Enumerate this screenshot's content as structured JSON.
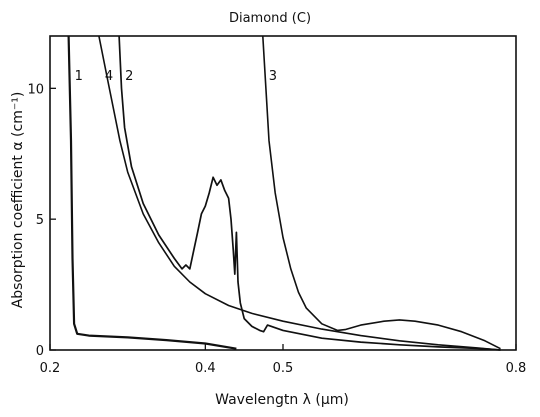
{
  "chart_data": {
    "type": "line",
    "title": "Diamond (C)",
    "xlabel": "Wavelengtn λ (µm)",
    "ylabel": "Absorption coefficient α (cm⁻¹)",
    "xlim": [
      0.2,
      0.8
    ],
    "ylim": [
      0,
      12
    ],
    "xticks": [
      {
        "value": 0.2,
        "label": "0.2"
      },
      {
        "value": 0.4,
        "label": "0.4"
      },
      {
        "value": 0.5,
        "label": "0.5"
      },
      {
        "value": 0.8,
        "label": "0.8"
      }
    ],
    "yticks": [
      {
        "value": 0,
        "label": "0"
      },
      {
        "value": 5,
        "label": "5"
      },
      {
        "value": 10,
        "label": "10"
      }
    ],
    "grid": false,
    "series": [
      {
        "name": "1",
        "points": [
          [
            0.224,
            12
          ],
          [
            0.227,
            8.0
          ],
          [
            0.229,
            3.5
          ],
          [
            0.231,
            1.0
          ],
          [
            0.235,
            0.62
          ],
          [
            0.25,
            0.55
          ],
          [
            0.3,
            0.48
          ],
          [
            0.35,
            0.38
          ],
          [
            0.4,
            0.25
          ],
          [
            0.44,
            0.05
          ]
        ]
      },
      {
        "name": "4",
        "points": [
          [
            0.263,
            12
          ],
          [
            0.275,
            10.2
          ],
          [
            0.29,
            8.0
          ],
          [
            0.3,
            6.8
          ],
          [
            0.32,
            5.2
          ],
          [
            0.34,
            4.1
          ],
          [
            0.36,
            3.2
          ],
          [
            0.38,
            2.6
          ],
          [
            0.4,
            2.15
          ],
          [
            0.43,
            1.7
          ],
          [
            0.46,
            1.4
          ],
          [
            0.5,
            1.1
          ],
          [
            0.55,
            0.8
          ],
          [
            0.6,
            0.55
          ],
          [
            0.65,
            0.35
          ],
          [
            0.7,
            0.2
          ],
          [
            0.75,
            0.08
          ],
          [
            0.78,
            0
          ]
        ]
      },
      {
        "name": "2",
        "points": [
          [
            0.289,
            12
          ],
          [
            0.292,
            10.0
          ],
          [
            0.296,
            8.5
          ],
          [
            0.305,
            7.0
          ],
          [
            0.32,
            5.6
          ],
          [
            0.34,
            4.4
          ],
          [
            0.36,
            3.5
          ],
          [
            0.37,
            3.1
          ],
          [
            0.375,
            3.25
          ],
          [
            0.38,
            3.1
          ],
          [
            0.385,
            3.8
          ],
          [
            0.39,
            4.5
          ],
          [
            0.395,
            5.2
          ],
          [
            0.4,
            5.5
          ],
          [
            0.405,
            6.0
          ],
          [
            0.41,
            6.6
          ],
          [
            0.415,
            6.3
          ],
          [
            0.42,
            6.5
          ],
          [
            0.425,
            6.1
          ],
          [
            0.43,
            5.8
          ],
          [
            0.433,
            5.0
          ],
          [
            0.436,
            3.8
          ],
          [
            0.438,
            2.9
          ],
          [
            0.44,
            4.5
          ],
          [
            0.442,
            2.6
          ],
          [
            0.445,
            1.8
          ],
          [
            0.45,
            1.2
          ],
          [
            0.46,
            0.9
          ],
          [
            0.47,
            0.75
          ],
          [
            0.475,
            0.7
          ],
          [
            0.48,
            0.95
          ],
          [
            0.5,
            0.75
          ],
          [
            0.55,
            0.45
          ],
          [
            0.6,
            0.3
          ],
          [
            0.65,
            0.2
          ],
          [
            0.7,
            0.12
          ],
          [
            0.75,
            0.06
          ],
          [
            0.78,
            0
          ]
        ]
      },
      {
        "name": "3",
        "points": [
          [
            0.474,
            12
          ],
          [
            0.478,
            10.0
          ],
          [
            0.482,
            8.0
          ],
          [
            0.49,
            6.0
          ],
          [
            0.5,
            4.3
          ],
          [
            0.51,
            3.1
          ],
          [
            0.52,
            2.2
          ],
          [
            0.53,
            1.6
          ],
          [
            0.55,
            1.0
          ],
          [
            0.57,
            0.75
          ],
          [
            0.58,
            0.78
          ],
          [
            0.6,
            0.95
          ],
          [
            0.63,
            1.1
          ],
          [
            0.65,
            1.15
          ],
          [
            0.67,
            1.1
          ],
          [
            0.7,
            0.95
          ],
          [
            0.73,
            0.7
          ],
          [
            0.76,
            0.35
          ],
          [
            0.78,
            0.05
          ]
        ]
      }
    ]
  }
}
